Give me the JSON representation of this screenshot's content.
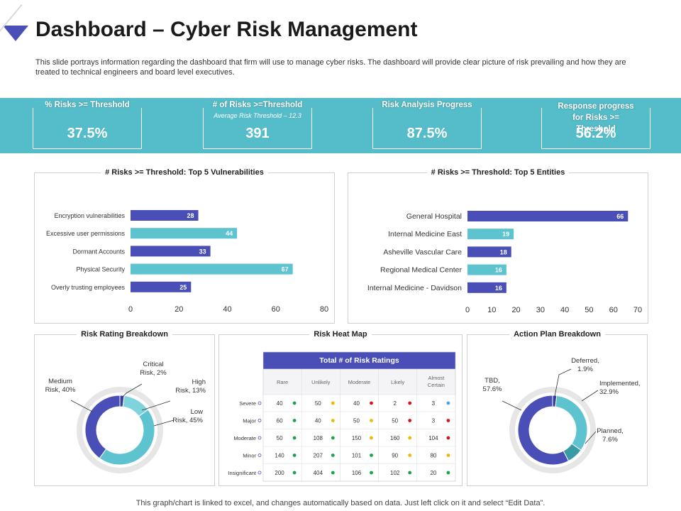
{
  "page": {
    "title": "Dashboard – Cyber Risk Management",
    "subtitle": "This slide portrays information regarding the dashboard that firm will use to manage cyber risks. The dashboard will provide clear picture of risk prevailing and how they are treated to technical engineers and board level executives.",
    "footer": "This graph/chart is linked to excel, and changes automatically based on data. Just left click on it and select “Edit Data”."
  },
  "colors": {
    "accent": "#55bcc9",
    "brand": "#4a4fb8",
    "teal": "#5cc3cf",
    "green": "#1aa34a",
    "yellow": "#f2b705",
    "red": "#d0191f",
    "blue": "#4aa3df"
  },
  "kpis": [
    {
      "label": "% Risks >= Threshold",
      "sub": "",
      "value": "37.5%"
    },
    {
      "label": "# of Risks >=Threshold",
      "sub": "Average Risk Threshold – 12.3",
      "value": "391"
    },
    {
      "label": "Risk Analysis Progress",
      "sub": "",
      "value": "87.5%"
    },
    {
      "label": "Response progress for Risks >= Threshold",
      "sub": "",
      "value": "56.2%"
    }
  ],
  "panels": {
    "vulnerabilities": "# Risks >= Threshold: Top 5 Vulnerabilities",
    "entities": "# Risks >= Threshold: Top 5 Entities",
    "rating": "Risk Rating Breakdown",
    "heatmap": "Risk Heat Map",
    "action": "Action Plan Breakdown"
  },
  "chart_data": [
    {
      "type": "bar",
      "title": "# Risks >= Threshold: Top 5 Vulnerabilities",
      "categories": [
        "Encryption vulnerabilities",
        "Excessive user permissions",
        "Dormant Accounts",
        "Physical Security",
        "Overly trusting employees"
      ],
      "values": [
        28,
        44,
        33,
        67,
        25
      ],
      "colors": [
        "#4a4fb8",
        "#5cc3cf",
        "#4a4fb8",
        "#5cc3cf",
        "#4a4fb8"
      ],
      "xlim": [
        0,
        80
      ],
      "xticks": [
        "0",
        "20",
        "40",
        "60",
        "80"
      ],
      "orientation": "horizontal"
    },
    {
      "type": "bar",
      "title": "# Risks >= Threshold: Top 5 Entities",
      "categories": [
        "General Hospital",
        "Internal Medicine East",
        "Asheville Vascular Care",
        "Regional Medical Center",
        "Internal Medicine - Davidson"
      ],
      "values": [
        66,
        19,
        18,
        16,
        16
      ],
      "colors": [
        "#4a4fb8",
        "#5cc3cf",
        "#4a4fb8",
        "#5cc3cf",
        "#4a4fb8"
      ],
      "xlim": [
        0,
        70
      ],
      "xticks": [
        "0",
        "10",
        "20",
        "30",
        "40",
        "50",
        "60",
        "70"
      ],
      "orientation": "horizontal"
    },
    {
      "type": "pie",
      "title": "Risk Rating Breakdown",
      "slices": [
        {
          "name": "Critical",
          "label": [
            "Critical",
            "Risk, 2%"
          ],
          "value": 2,
          "color": "#3a3e9a"
        },
        {
          "name": "High",
          "label": [
            "High",
            "Risk, 13%"
          ],
          "value": 13,
          "color": "#7fd3dc"
        },
        {
          "name": "Low",
          "label": [
            "Low",
            "Risk, 45%"
          ],
          "value": 45,
          "color": "#5cc3cf"
        },
        {
          "name": "Medium",
          "label": [
            "Medium",
            "Risk, 40%"
          ],
          "value": 40,
          "color": "#4a4fb8"
        }
      ]
    },
    {
      "type": "table",
      "title": "Risk Heat Map",
      "header": "Total # of Risk Ratings",
      "columns": [
        "Rare",
        "Unlikely",
        "Moderate",
        "Likely",
        "Almost Certain"
      ],
      "rows": [
        {
          "label": "Severe",
          "values": [
            40,
            50,
            40,
            2,
            3
          ],
          "dots": [
            "green",
            "yellow",
            "red",
            "red",
            "blue"
          ]
        },
        {
          "label": "Major",
          "values": [
            60,
            40,
            50,
            50,
            3
          ],
          "dots": [
            "green",
            "yellow",
            "yellow",
            "red",
            "red"
          ]
        },
        {
          "label": "Moderate",
          "values": [
            50,
            108,
            150,
            160,
            104
          ],
          "dots": [
            "green",
            "green",
            "yellow",
            "yellow",
            "red"
          ]
        },
        {
          "label": "Minor",
          "values": [
            140,
            207,
            101,
            90,
            80
          ],
          "dots": [
            "green",
            "green",
            "green",
            "yellow",
            "yellow"
          ]
        },
        {
          "label": "Insignificant",
          "values": [
            200,
            404,
            106,
            102,
            20
          ],
          "dots": [
            "green",
            "green",
            "green",
            "green",
            "green"
          ]
        }
      ]
    },
    {
      "type": "pie",
      "title": "Action Plan Breakdown",
      "slices": [
        {
          "name": "Deferred",
          "label": [
            "Deferred,",
            "1.9%"
          ],
          "value": 1.9,
          "color": "#3a3e9a"
        },
        {
          "name": "Implemented",
          "label": [
            "Implemented,",
            "32.9%"
          ],
          "value": 32.9,
          "color": "#5cc3cf"
        },
        {
          "name": "Planned",
          "label": [
            "Planned,",
            "7.6%"
          ],
          "value": 7.6,
          "color": "#3a9aa6"
        },
        {
          "name": "TBD",
          "label": [
            "TBD,",
            "57.6%"
          ],
          "value": 57.6,
          "color": "#4a4fb8"
        }
      ]
    }
  ]
}
